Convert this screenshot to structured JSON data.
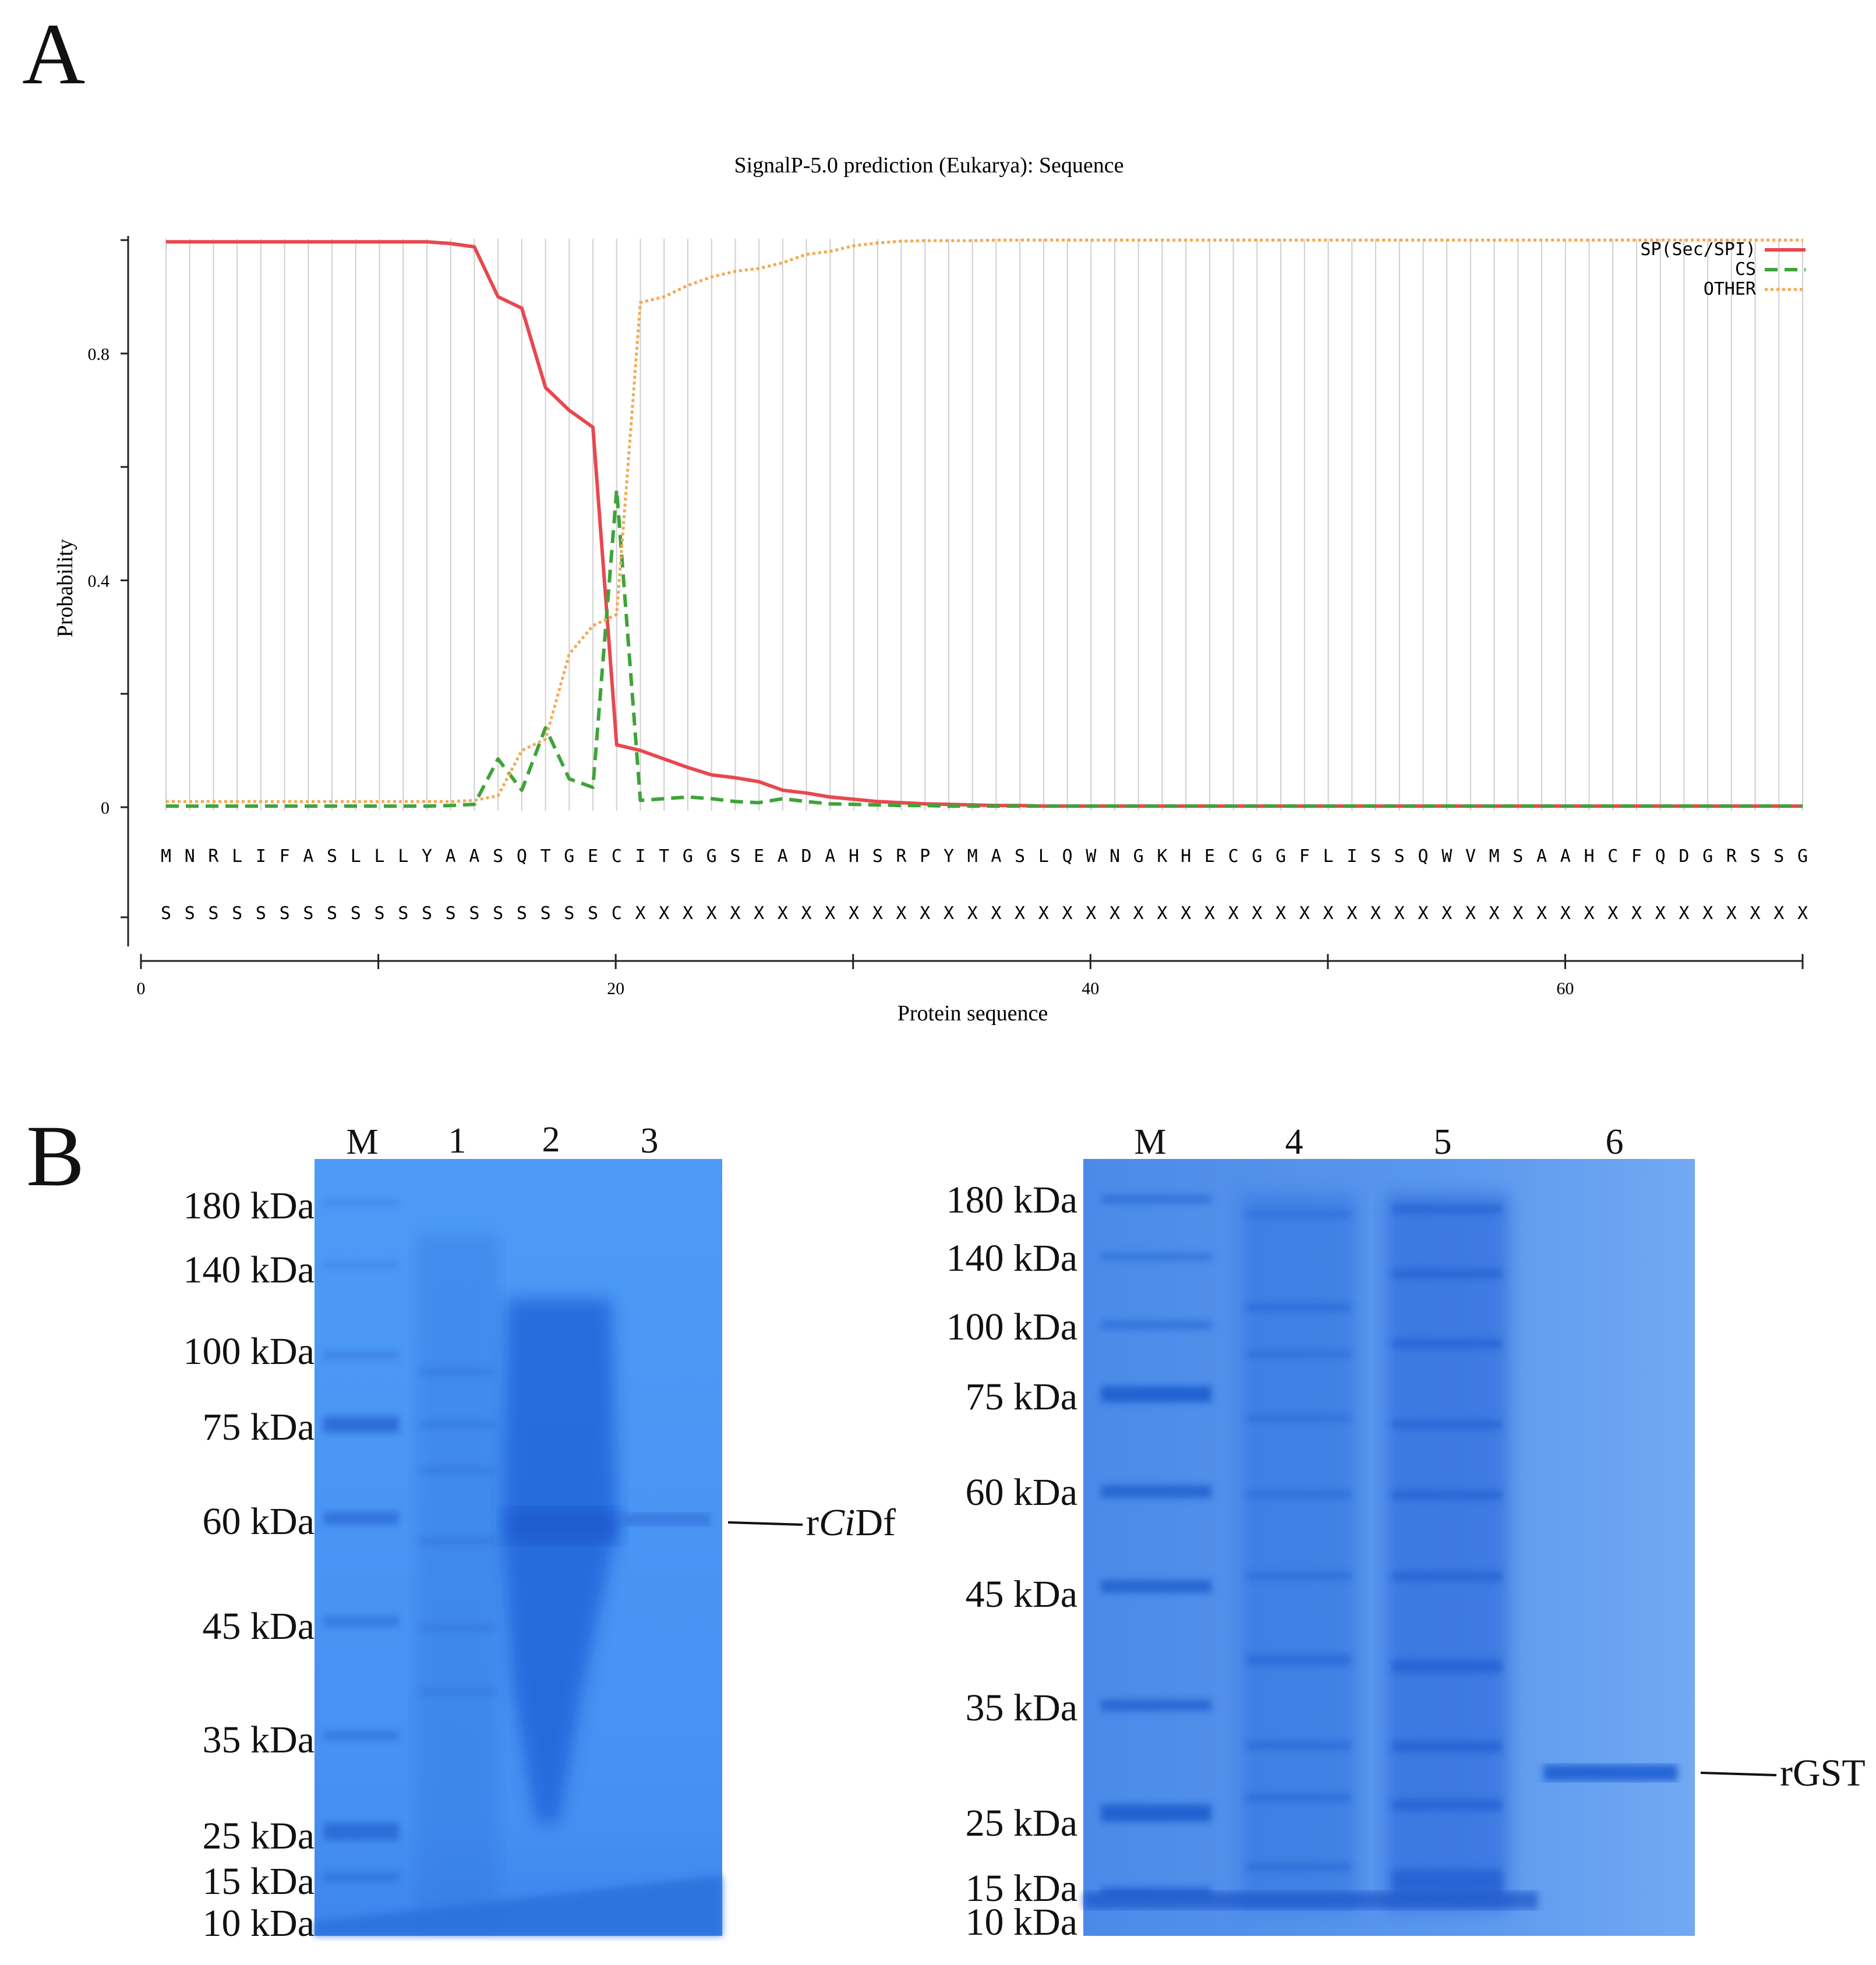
{
  "panels": {
    "a": "A",
    "b": "B"
  },
  "chart_data": {
    "type": "line",
    "title": "SignalP-5.0 prediction (Eukarya):  Sequence",
    "xlabel": "Protein sequence",
    "ylabel": "Probability",
    "xlim": [
      0,
      70
    ],
    "ylim": [
      -0.25,
      1.0
    ],
    "xticks": [
      "0",
      "20",
      "40",
      "60"
    ],
    "yticks": [
      "0",
      "0.4",
      "0.8"
    ],
    "grid": true,
    "legend_position": "top-right",
    "sequence": [
      "M",
      "N",
      "R",
      "L",
      "I",
      "F",
      "A",
      "S",
      "L",
      "L",
      "L",
      "Y",
      "A",
      "A",
      "S",
      "Q",
      "T",
      "G",
      "E",
      "C",
      "I",
      "T",
      "G",
      "G",
      "S",
      "E",
      "A",
      "D",
      "A",
      "H",
      "S",
      "R",
      "P",
      "Y",
      "M",
      "A",
      "S",
      "L",
      "Q",
      "W",
      "N",
      "G",
      "K",
      "H",
      "E",
      "C",
      "G",
      "G",
      "F",
      "L",
      "I",
      "S",
      "S",
      "Q",
      "W",
      "V",
      "M",
      "S",
      "A",
      "A",
      "H",
      "C",
      "F",
      "Q",
      "D",
      "G",
      "R",
      "S",
      "S",
      "G"
    ],
    "annotation": [
      "S",
      "S",
      "S",
      "S",
      "S",
      "S",
      "S",
      "S",
      "S",
      "S",
      "S",
      "S",
      "S",
      "S",
      "S",
      "S",
      "S",
      "S",
      "S",
      "C",
      "X",
      "X",
      "X",
      "X",
      "X",
      "X",
      "X",
      "X",
      "X",
      "X",
      "X",
      "X",
      "X",
      "X",
      "X",
      "X",
      "X",
      "X",
      "X",
      "X",
      "X",
      "X",
      "X",
      "X",
      "X",
      "X",
      "X",
      "X",
      "X",
      "X",
      "X",
      "X",
      "X",
      "X",
      "X",
      "X",
      "X",
      "X",
      "X",
      "X",
      "X",
      "X",
      "X",
      "X",
      "X",
      "X",
      "X",
      "X",
      "X",
      "X"
    ],
    "series": [
      {
        "name": "SP(Sec/SPI)",
        "color": "#e8484e",
        "style": "solid",
        "values": [
          0.997,
          0.997,
          0.997,
          0.997,
          0.997,
          0.997,
          0.997,
          0.997,
          0.997,
          0.997,
          0.997,
          0.997,
          0.994,
          0.988,
          0.9,
          0.88,
          0.74,
          0.7,
          0.67,
          0.11,
          0.1,
          0.085,
          0.07,
          0.057,
          0.052,
          0.045,
          0.03,
          0.025,
          0.018,
          0.014,
          0.01,
          0.008,
          0.006,
          0.005,
          0.004,
          0.003,
          0.003,
          0.002,
          0.002,
          0.002,
          0.002,
          0.002,
          0.002,
          0.002,
          0.002,
          0.002,
          0.002,
          0.002,
          0.002,
          0.002,
          0.002,
          0.002,
          0.002,
          0.002,
          0.002,
          0.002,
          0.002,
          0.002,
          0.002,
          0.002,
          0.002,
          0.002,
          0.002,
          0.002,
          0.002,
          0.002,
          0.002,
          0.002,
          0.002,
          0.002
        ]
      },
      {
        "name": "CS",
        "color": "#3fa33a",
        "style": "dashed",
        "values": [
          0.002,
          0.002,
          0.002,
          0.002,
          0.002,
          0.002,
          0.002,
          0.002,
          0.002,
          0.002,
          0.002,
          0.002,
          0.003,
          0.005,
          0.085,
          0.03,
          0.14,
          0.05,
          0.035,
          0.56,
          0.012,
          0.015,
          0.018,
          0.015,
          0.01,
          0.008,
          0.015,
          0.01,
          0.006,
          0.005,
          0.004,
          0.003,
          0.003,
          0.002,
          0.002,
          0.002,
          0.002,
          0.002,
          0.002,
          0.002,
          0.002,
          0.002,
          0.002,
          0.002,
          0.002,
          0.002,
          0.002,
          0.002,
          0.002,
          0.002,
          0.002,
          0.002,
          0.002,
          0.002,
          0.002,
          0.002,
          0.002,
          0.002,
          0.002,
          0.002,
          0.002,
          0.002,
          0.002,
          0.002,
          0.002,
          0.002,
          0.002,
          0.002,
          0.002,
          0.002
        ]
      },
      {
        "name": "OTHER",
        "color": "#f5a852",
        "style": "dotted",
        "values": [
          0.01,
          0.01,
          0.01,
          0.01,
          0.01,
          0.01,
          0.01,
          0.01,
          0.01,
          0.01,
          0.01,
          0.01,
          0.01,
          0.012,
          0.02,
          0.1,
          0.12,
          0.27,
          0.32,
          0.34,
          0.89,
          0.9,
          0.92,
          0.935,
          0.945,
          0.95,
          0.96,
          0.975,
          0.98,
          0.99,
          0.995,
          0.998,
          0.999,
          0.999,
          0.999,
          1.0,
          1.0,
          1.0,
          1.0,
          1.0,
          1.0,
          1.0,
          1.0,
          1.0,
          1.0,
          1.0,
          1.0,
          1.0,
          1.0,
          1.0,
          1.0,
          1.0,
          1.0,
          1.0,
          1.0,
          1.0,
          1.0,
          1.0,
          1.0,
          1.0,
          1.0,
          1.0,
          1.0,
          1.0,
          1.0,
          1.0,
          1.0,
          1.0,
          1.0,
          1.0
        ]
      }
    ]
  },
  "gels": {
    "left": {
      "lanes": [
        "M",
        "1",
        "2",
        "3"
      ],
      "markers": [
        "180 kDa",
        "140 kDa",
        "100 kDa",
        "75 kDa",
        "60 kDa",
        "45 kDa",
        "35 kDa",
        "25 kDa",
        "15 kDa",
        "10 kDa"
      ],
      "callout_prefix": "r",
      "callout_italic": "Ci",
      "callout_suffix": "Df"
    },
    "right": {
      "lanes": [
        "M",
        "4",
        "5",
        "6"
      ],
      "markers": [
        "180 kDa",
        "140 kDa",
        "100 kDa",
        "75 kDa",
        "60 kDa",
        "45 kDa",
        "35 kDa",
        "25 kDa",
        "15 kDa",
        "10 kDa"
      ],
      "callout": "rGST"
    }
  }
}
